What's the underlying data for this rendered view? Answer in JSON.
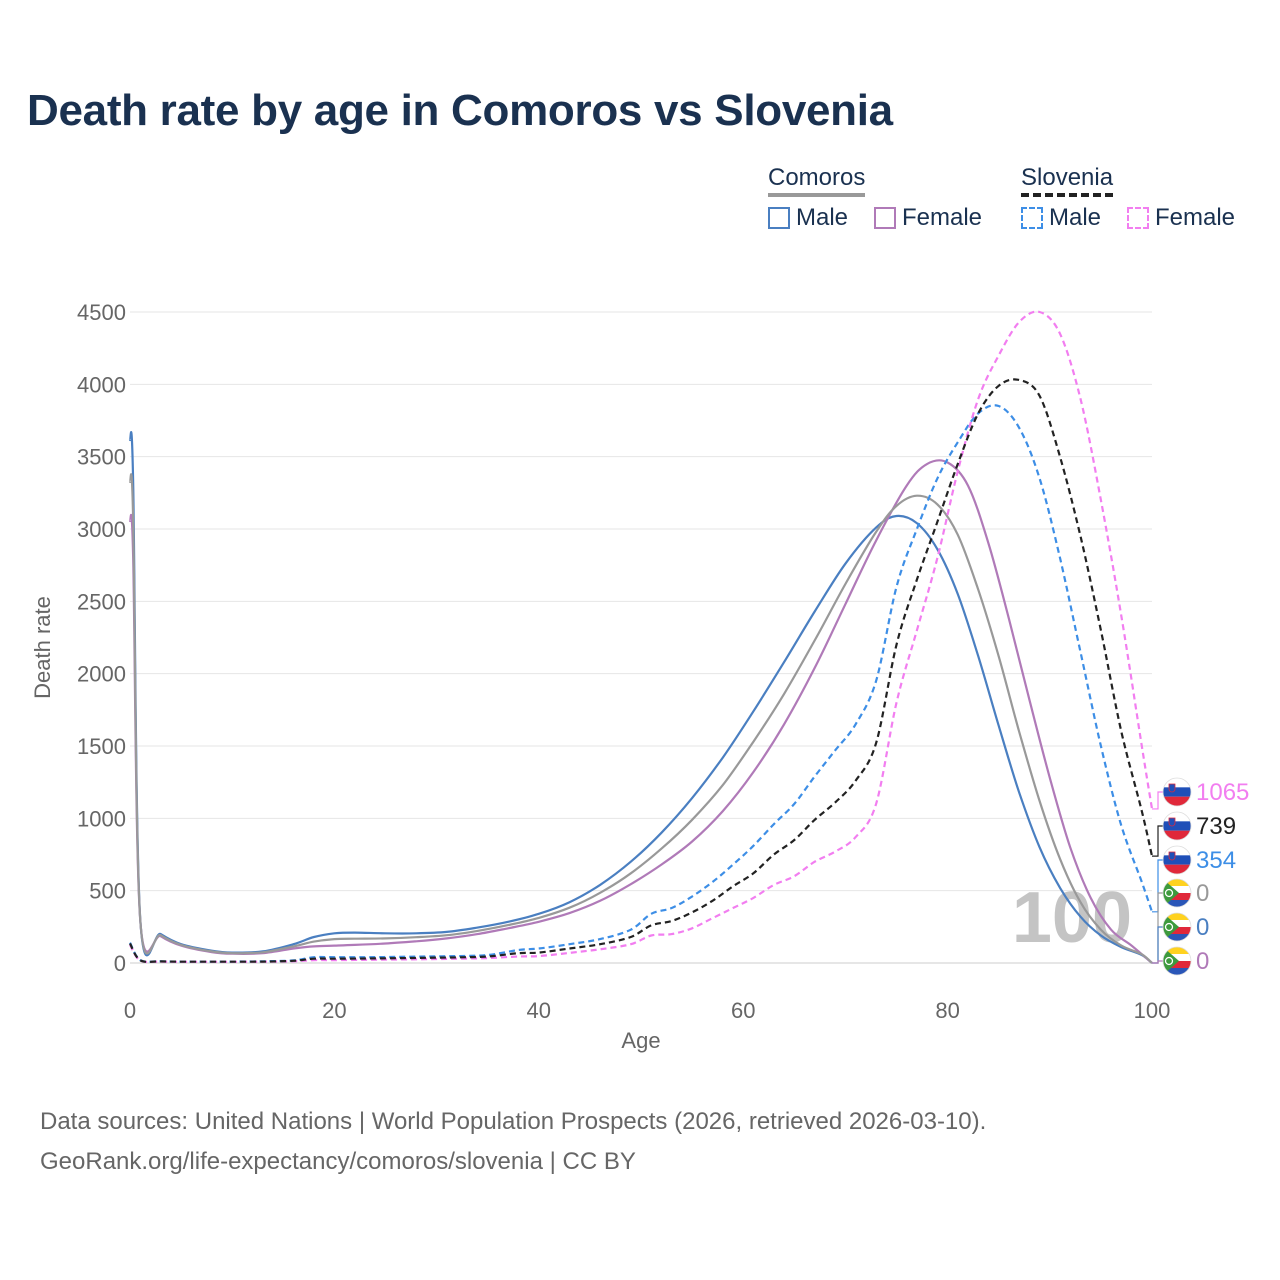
{
  "title": "Death rate by age in Comoros vs Slovenia",
  "legend": {
    "groups": [
      {
        "name": "Comoros",
        "color": "#999999",
        "dashed": false,
        "items": [
          {
            "label": "Male",
            "color": "#4a7fc1"
          },
          {
            "label": "Female",
            "color": "#b07ab8"
          }
        ]
      },
      {
        "name": "Slovenia",
        "color": "#222222",
        "dashed": true,
        "items": [
          {
            "label": "Male",
            "color": "#3d8ee6"
          },
          {
            "label": "Female",
            "color": "#f27ef0"
          }
        ]
      }
    ]
  },
  "footer": {
    "line1": "Data sources: United Nations | World Population Prospects (2026, retrieved 2026-03-10).",
    "line2": "GeoRank.org/life-expectancy/comoros/slovenia | CC BY"
  },
  "chart_data": {
    "type": "line",
    "xlabel": "Age",
    "ylabel": "Death rate",
    "xlim": [
      0,
      100
    ],
    "ylim": [
      0,
      4500
    ],
    "xticks": [
      0,
      20,
      40,
      60,
      80,
      100
    ],
    "yticks": [
      0,
      500,
      1000,
      1500,
      2000,
      2500,
      3000,
      3500,
      4000,
      4500
    ],
    "grid": true,
    "watermark": "100",
    "series": [
      {
        "name": "Comoros Male",
        "country": "Comoros",
        "color": "#4a7fc1",
        "dashed": false,
        "end_label": "0",
        "points": [
          [
            0,
            3620
          ],
          [
            0.3,
            3340
          ],
          [
            1,
            310
          ],
          [
            3,
            200
          ],
          [
            5,
            130
          ],
          [
            8,
            85
          ],
          [
            10,
            72
          ],
          [
            13,
            80
          ],
          [
            16,
            130
          ],
          [
            18,
            180
          ],
          [
            20,
            205
          ],
          [
            22,
            210
          ],
          [
            25,
            205
          ],
          [
            28,
            205
          ],
          [
            31,
            215
          ],
          [
            34,
            245
          ],
          [
            37,
            285
          ],
          [
            40,
            340
          ],
          [
            43,
            420
          ],
          [
            46,
            540
          ],
          [
            49,
            700
          ],
          [
            52,
            900
          ],
          [
            55,
            1140
          ],
          [
            58,
            1420
          ],
          [
            61,
            1740
          ],
          [
            64,
            2080
          ],
          [
            67,
            2430
          ],
          [
            70,
            2760
          ],
          [
            73,
            3010
          ],
          [
            75,
            3090
          ],
          [
            77,
            3040
          ],
          [
            79,
            2860
          ],
          [
            81,
            2550
          ],
          [
            83,
            2120
          ],
          [
            85,
            1640
          ],
          [
            87,
            1180
          ],
          [
            89,
            800
          ],
          [
            91,
            520
          ],
          [
            93,
            320
          ],
          [
            95,
            190
          ],
          [
            97,
            110
          ],
          [
            99,
            55
          ],
          [
            100,
            0
          ]
        ]
      },
      {
        "name": "Comoros Female",
        "country": "Comoros",
        "color": "#b07ab8",
        "dashed": false,
        "end_label": "0",
        "points": [
          [
            0,
            3060
          ],
          [
            0.3,
            2820
          ],
          [
            1,
            300
          ],
          [
            3,
            185
          ],
          [
            5,
            120
          ],
          [
            8,
            75
          ],
          [
            10,
            64
          ],
          [
            13,
            68
          ],
          [
            16,
            100
          ],
          [
            18,
            115
          ],
          [
            20,
            120
          ],
          [
            22,
            125
          ],
          [
            25,
            135
          ],
          [
            28,
            150
          ],
          [
            31,
            170
          ],
          [
            34,
            200
          ],
          [
            37,
            240
          ],
          [
            40,
            285
          ],
          [
            43,
            345
          ],
          [
            46,
            430
          ],
          [
            49,
            545
          ],
          [
            52,
            680
          ],
          [
            55,
            840
          ],
          [
            58,
            1050
          ],
          [
            61,
            1320
          ],
          [
            64,
            1650
          ],
          [
            67,
            2040
          ],
          [
            70,
            2480
          ],
          [
            73,
            2920
          ],
          [
            76,
            3300
          ],
          [
            78,
            3450
          ],
          [
            80,
            3460
          ],
          [
            82,
            3300
          ],
          [
            84,
            2900
          ],
          [
            86,
            2380
          ],
          [
            88,
            1820
          ],
          [
            90,
            1280
          ],
          [
            92,
            800
          ],
          [
            94,
            450
          ],
          [
            96,
            230
          ],
          [
            98,
            120
          ],
          [
            100,
            0
          ]
        ]
      },
      {
        "name": "Comoros (total)",
        "country": "Comoros",
        "color": "#999999",
        "dashed": false,
        "end_label": "0",
        "points": [
          [
            0,
            3330
          ],
          [
            0.3,
            3080
          ],
          [
            1,
            305
          ],
          [
            3,
            192
          ],
          [
            5,
            125
          ],
          [
            8,
            80
          ],
          [
            10,
            68
          ],
          [
            13,
            74
          ],
          [
            16,
            115
          ],
          [
            18,
            148
          ],
          [
            20,
            165
          ],
          [
            22,
            168
          ],
          [
            25,
            170
          ],
          [
            28,
            178
          ],
          [
            31,
            192
          ],
          [
            34,
            222
          ],
          [
            37,
            262
          ],
          [
            40,
            312
          ],
          [
            43,
            382
          ],
          [
            46,
            485
          ],
          [
            49,
            620
          ],
          [
            52,
            790
          ],
          [
            55,
            990
          ],
          [
            58,
            1230
          ],
          [
            61,
            1530
          ],
          [
            64,
            1860
          ],
          [
            67,
            2230
          ],
          [
            70,
            2620
          ],
          [
            73,
            2980
          ],
          [
            75,
            3160
          ],
          [
            77,
            3230
          ],
          [
            79,
            3170
          ],
          [
            81,
            2960
          ],
          [
            83,
            2580
          ],
          [
            85,
            2120
          ],
          [
            87,
            1600
          ],
          [
            89,
            1120
          ],
          [
            91,
            720
          ],
          [
            93,
            420
          ],
          [
            95,
            230
          ],
          [
            97,
            120
          ],
          [
            99,
            60
          ],
          [
            100,
            0
          ]
        ]
      },
      {
        "name": "Slovenia Male",
        "country": "Slovenia",
        "color": "#3d8ee6",
        "dashed": true,
        "end_label": "354",
        "points": [
          [
            0,
            140
          ],
          [
            1,
            20
          ],
          [
            3,
            12
          ],
          [
            5,
            10
          ],
          [
            8,
            10
          ],
          [
            10,
            10
          ],
          [
            13,
            12
          ],
          [
            16,
            18
          ],
          [
            18,
            40
          ],
          [
            20,
            40
          ],
          [
            23,
            40
          ],
          [
            26,
            42
          ],
          [
            29,
            45
          ],
          [
            32,
            48
          ],
          [
            35,
            55
          ],
          [
            38,
            90
          ],
          [
            40,
            100
          ],
          [
            43,
            130
          ],
          [
            46,
            165
          ],
          [
            49,
            230
          ],
          [
            51,
            340
          ],
          [
            53,
            380
          ],
          [
            55,
            460
          ],
          [
            57,
            560
          ],
          [
            59,
            680
          ],
          [
            61,
            810
          ],
          [
            63,
            960
          ],
          [
            65,
            1100
          ],
          [
            67,
            1290
          ],
          [
            69,
            1470
          ],
          [
            71,
            1650
          ],
          [
            73,
            1950
          ],
          [
            75,
            2600
          ],
          [
            77,
            3000
          ],
          [
            79,
            3350
          ],
          [
            81,
            3600
          ],
          [
            83,
            3800
          ],
          [
            85,
            3850
          ],
          [
            87,
            3700
          ],
          [
            89,
            3350
          ],
          [
            91,
            2800
          ],
          [
            93,
            2150
          ],
          [
            95,
            1500
          ],
          [
            97,
            950
          ],
          [
            99,
            560
          ],
          [
            100,
            354
          ]
        ]
      },
      {
        "name": "Slovenia Female",
        "country": "Slovenia",
        "color": "#f27ef0",
        "dashed": true,
        "end_label": "1065",
        "points": [
          [
            0,
            125
          ],
          [
            1,
            17
          ],
          [
            3,
            10
          ],
          [
            5,
            8
          ],
          [
            8,
            8
          ],
          [
            10,
            8
          ],
          [
            13,
            9
          ],
          [
            16,
            12
          ],
          [
            18,
            20
          ],
          [
            20,
            20
          ],
          [
            23,
            22
          ],
          [
            26,
            24
          ],
          [
            29,
            26
          ],
          [
            32,
            30
          ],
          [
            35,
            34
          ],
          [
            38,
            45
          ],
          [
            40,
            48
          ],
          [
            43,
            70
          ],
          [
            46,
            95
          ],
          [
            49,
            130
          ],
          [
            51,
            190
          ],
          [
            53,
            200
          ],
          [
            55,
            240
          ],
          [
            57,
            310
          ],
          [
            59,
            380
          ],
          [
            61,
            450
          ],
          [
            63,
            540
          ],
          [
            65,
            600
          ],
          [
            67,
            700
          ],
          [
            69,
            770
          ],
          [
            71,
            870
          ],
          [
            73,
            1100
          ],
          [
            75,
            1800
          ],
          [
            77,
            2300
          ],
          [
            79,
            2800
          ],
          [
            81,
            3400
          ],
          [
            83,
            3900
          ],
          [
            85,
            4200
          ],
          [
            87,
            4430
          ],
          [
            89,
            4500
          ],
          [
            91,
            4350
          ],
          [
            93,
            3900
          ],
          [
            95,
            3200
          ],
          [
            97,
            2400
          ],
          [
            99,
            1500
          ],
          [
            100,
            1065
          ]
        ]
      },
      {
        "name": "Slovenia (total)",
        "country": "Slovenia",
        "color": "#222222",
        "dashed": true,
        "end_label": "739",
        "points": [
          [
            0,
            135
          ],
          [
            1,
            19
          ],
          [
            3,
            11
          ],
          [
            5,
            9
          ],
          [
            8,
            9
          ],
          [
            10,
            9
          ],
          [
            13,
            10
          ],
          [
            16,
            15
          ],
          [
            18,
            30
          ],
          [
            20,
            30
          ],
          [
            23,
            31
          ],
          [
            26,
            33
          ],
          [
            29,
            36
          ],
          [
            32,
            39
          ],
          [
            35,
            45
          ],
          [
            38,
            68
          ],
          [
            40,
            72
          ],
          [
            43,
            100
          ],
          [
            46,
            130
          ],
          [
            49,
            180
          ],
          [
            51,
            260
          ],
          [
            53,
            290
          ],
          [
            55,
            350
          ],
          [
            57,
            430
          ],
          [
            59,
            530
          ],
          [
            61,
            620
          ],
          [
            63,
            750
          ],
          [
            65,
            850
          ],
          [
            67,
            990
          ],
          [
            69,
            1110
          ],
          [
            71,
            1260
          ],
          [
            73,
            1520
          ],
          [
            75,
            2200
          ],
          [
            77,
            2650
          ],
          [
            79,
            3050
          ],
          [
            81,
            3450
          ],
          [
            83,
            3800
          ],
          [
            85,
            3990
          ],
          [
            87,
            4030
          ],
          [
            89,
            3920
          ],
          [
            91,
            3500
          ],
          [
            93,
            2950
          ],
          [
            95,
            2300
          ],
          [
            97,
            1600
          ],
          [
            99,
            1050
          ],
          [
            100,
            739
          ]
        ]
      }
    ]
  }
}
